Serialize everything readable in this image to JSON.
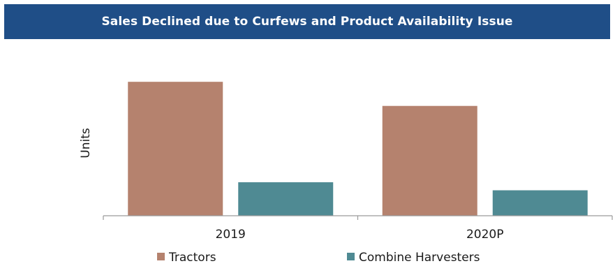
{
  "chart_data": {
    "type": "bar",
    "title": "Sales Declined due to Curfews and Product Availability Issue",
    "xlabel": "",
    "ylabel": "Units",
    "categories": [
      "2019",
      "2020P"
    ],
    "series": [
      {
        "name": "Tractors",
        "color": "#b5826e",
        "values": [
          100,
          82
        ]
      },
      {
        "name": "Combine Harvesters",
        "color": "#4f8a93",
        "values": [
          25,
          19
        ]
      }
    ],
    "ylim": [
      0,
      110
    ],
    "grid": false,
    "legend": "bottom",
    "y_ticks_shown": false
  },
  "colors": {
    "title_banner": "#1f4e87",
    "title_text": "#ffffff",
    "axis": "#9a9a9a"
  }
}
